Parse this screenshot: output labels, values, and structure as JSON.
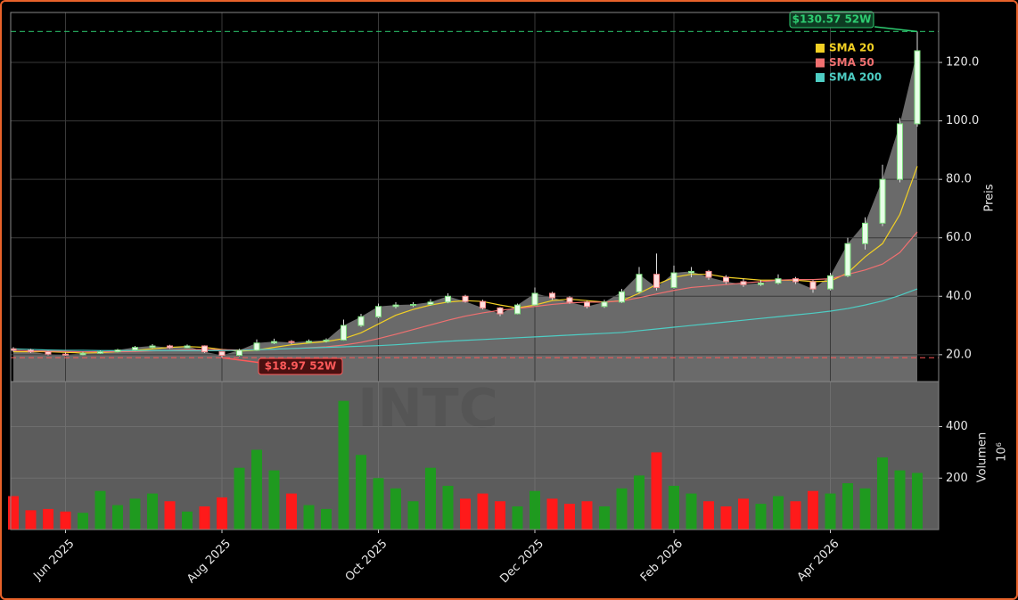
{
  "chart_data": {
    "type": "candlestick",
    "ylabel": "Preis",
    "watermark": "INTC",
    "categories": [
      null,
      null,
      null,
      "Jun 2025",
      null,
      null,
      null,
      null,
      null,
      null,
      null,
      null,
      "Aug 2025",
      null,
      null,
      null,
      null,
      null,
      null,
      null,
      null,
      "Oct 2025",
      null,
      null,
      null,
      null,
      null,
      null,
      null,
      null,
      "Dec 2025",
      null,
      null,
      null,
      null,
      null,
      null,
      null,
      "Feb 2026",
      null,
      null,
      null,
      null,
      null,
      null,
      null,
      null,
      "Apr 2026",
      null,
      null,
      null,
      null,
      null
    ],
    "open": [
      22,
      21.5,
      21,
      20.2,
      20,
      20.5,
      21,
      21.6,
      22.5,
      23,
      22.4,
      23,
      21,
      19.8,
      21.5,
      24,
      24.5,
      24.2,
      24.6,
      25,
      30,
      33,
      36.5,
      37,
      37.2,
      38,
      40,
      38.2,
      36,
      34,
      37,
      41,
      39.5,
      38,
      36.5,
      38,
      41.5,
      47.5,
      43,
      48,
      48.5,
      46.5,
      45,
      44,
      44.5,
      46,
      45,
      42.5,
      47,
      58,
      65,
      80,
      99
    ],
    "high": [
      22.6,
      22,
      21.3,
      20.7,
      21,
      21.4,
      22,
      23,
      23.6,
      23.4,
      23.5,
      23.2,
      21.2,
      22,
      25.2,
      25.5,
      25,
      25.2,
      25.6,
      32,
      34,
      37.5,
      38,
      38,
      39,
      41,
      40.5,
      38.8,
      36.3,
      37.5,
      43,
      41.5,
      40,
      38.5,
      38.8,
      42.5,
      50,
      54.6,
      50.5,
      50,
      49,
      47.2,
      46,
      45.5,
      47.5,
      46.6,
      45.5,
      48,
      60,
      67,
      85,
      101,
      130.57
    ],
    "low": [
      21,
      20.6,
      19.8,
      19.6,
      19.8,
      20.3,
      20.8,
      21.4,
      22.2,
      22,
      22.2,
      20.6,
      18.97,
      19.5,
      21.3,
      23.6,
      23.6,
      24,
      24.2,
      24.8,
      29.5,
      32.5,
      35.8,
      36.3,
      36.8,
      37.6,
      37.8,
      35.5,
      33.2,
      33.8,
      36.8,
      38.8,
      37.4,
      35.8,
      36,
      37.7,
      41,
      42,
      42.6,
      46.5,
      45.6,
      44.2,
      43.2,
      43.5,
      44,
      44.2,
      41.2,
      42,
      46.5,
      56,
      64,
      79,
      98
    ],
    "close": [
      21.5,
      21,
      20.2,
      20,
      20.5,
      21,
      21.6,
      22.5,
      23,
      22.4,
      23,
      21,
      19.8,
      21.5,
      24,
      24.5,
      24.2,
      24.6,
      25,
      30,
      33,
      36.5,
      37,
      37.2,
      38,
      40,
      38.2,
      36,
      34,
      37,
      41,
      39.5,
      38,
      36.5,
      38,
      41.5,
      47.5,
      43,
      48,
      48.5,
      46.5,
      45,
      44,
      44.5,
      46,
      45,
      42.5,
      47,
      58,
      65,
      80,
      99,
      124
    ],
    "up_color": "#1f9a1f",
    "down_color": "#ff1a1a",
    "area_color": "#6a6a6a",
    "series": [
      {
        "name": "SMA 20",
        "color": "#f2d024",
        "values": [
          21,
          21,
          21,
          20.8,
          20.6,
          20.7,
          21,
          21.5,
          22,
          22.5,
          22.8,
          22.5,
          21.8,
          21.2,
          21.6,
          22.5,
          23.4,
          24,
          24.5,
          25.5,
          27.5,
          30.5,
          33.5,
          35.5,
          37,
          38,
          38.5,
          38.2,
          37,
          36,
          37,
          38.5,
          39,
          38.5,
          38,
          38.5,
          41,
          44,
          46.5,
          47.5,
          47.5,
          46.5,
          46,
          45.5,
          45.5,
          45.5,
          45,
          45.2,
          48,
          53.5,
          58,
          68,
          84.5
        ]
      },
      {
        "name": "SMA 50",
        "color": "#f07070",
        "values": [
          21.5,
          21.3,
          21.2,
          21.1,
          21,
          21,
          21,
          21.1,
          21.3,
          21.5,
          21.7,
          21.8,
          21.7,
          21.6,
          21.7,
          21.9,
          22.1,
          22.4,
          22.7,
          23.3,
          24.2,
          25.5,
          27,
          28.6,
          30.2,
          31.8,
          33.2,
          34.3,
          35.2,
          35.8,
          36.5,
          37.2,
          37.7,
          38,
          38,
          38.4,
          39.5,
          40.8,
          42,
          43,
          43.5,
          44,
          44.5,
          45,
          45.5,
          45.7,
          45.7,
          46,
          47.5,
          49,
          51,
          55,
          62
        ]
      },
      {
        "name": "SMA 200",
        "color": "#4ecdc4",
        "values": [
          22,
          21.8,
          21.6,
          21.5,
          21.5,
          21.4,
          21.4,
          21.4,
          21.4,
          21.4,
          21.4,
          21.4,
          21.4,
          21.5,
          21.7,
          21.9,
          22.1,
          22.3,
          22.5,
          22.7,
          22.9,
          23.1,
          23.4,
          23.8,
          24.2,
          24.6,
          24.9,
          25.2,
          25.5,
          25.8,
          26.1,
          26.4,
          26.7,
          27,
          27.3,
          27.6,
          28.2,
          28.8,
          29.4,
          30,
          30.6,
          31.2,
          31.8,
          32.4,
          33,
          33.6,
          34.2,
          34.9,
          35.8,
          37,
          38.4,
          40.3,
          42.5
        ]
      }
    ],
    "ylim": [
      10.8,
      137.1
    ],
    "yticks": [
      {
        "value": 20,
        "label": "20.0"
      },
      {
        "value": 40,
        "label": "40.0"
      },
      {
        "value": 60,
        "label": "60.0"
      },
      {
        "value": 80,
        "label": "80.0"
      },
      {
        "value": 100,
        "label": "100.0"
      },
      {
        "value": 120,
        "label": "120.0"
      }
    ],
    "grid": true,
    "legend": "upper right",
    "annotations": [
      {
        "value": 130.57,
        "label": "$130.57 52W",
        "color": "#2ecc71"
      },
      {
        "value": 18.97,
        "label": "$18.97 52W",
        "color": "#ff5a5a"
      }
    ],
    "volume": {
      "ylabel": "Volumen",
      "scale_label": "10⁶",
      "ylim": [
        0,
        575
      ],
      "yticks": [
        200,
        400
      ],
      "values": [
        130,
        75,
        80,
        70,
        65,
        150,
        95,
        120,
        140,
        110,
        70,
        90,
        125,
        240,
        310,
        230,
        140,
        95,
        80,
        500,
        290,
        200,
        160,
        110,
        240,
        170,
        120,
        140,
        110,
        90,
        150,
        120,
        100,
        110,
        90,
        160,
        210,
        300,
        170,
        140,
        110,
        90,
        120,
        100,
        130,
        110,
        150,
        140,
        180,
        160,
        280,
        230,
        220
      ]
    }
  }
}
